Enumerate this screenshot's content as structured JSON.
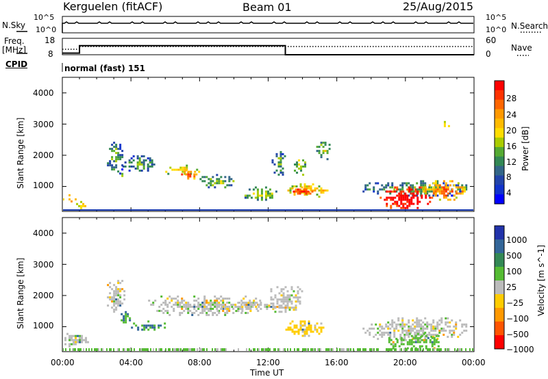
{
  "header": {
    "radar": "Kerguelen (fitACF)",
    "beam": "Beam 01",
    "date": "25/Aug/2015"
  },
  "sky_panel": {
    "left_label": "N.Sky",
    "left_ticks": [
      "10^5",
      "10^0"
    ],
    "right_ticks": [
      "10^5",
      "10^0"
    ],
    "right_label": "N.Search"
  },
  "freq_panel": {
    "left_label_line1": "Freq.",
    "left_label_line2": "[MHz]",
    "left_ticks": [
      "18",
      "8"
    ],
    "right_ticks": [
      "60",
      "0"
    ],
    "right_label": "Nave",
    "cpid_label": "CPID",
    "mode_text": "normal (fast) 151"
  },
  "power_panel": {
    "ylabel": "Slant Range [km]",
    "yticks": [
      "4000",
      "3000",
      "2000",
      "1000"
    ],
    "colorbar_label": "Power [dB]",
    "colorbar_ticks": [
      "28",
      "24",
      "20",
      "16",
      "12",
      "8",
      "4"
    ],
    "colorbar_colors": [
      "#ff0000",
      "#ff3300",
      "#ff6600",
      "#ff9900",
      "#ffbb00",
      "#ffdd00",
      "#aacc00",
      "#55aa33",
      "#338855",
      "#336688",
      "#2244aa",
      "#1133cc",
      "#0000ff"
    ]
  },
  "velocity_panel": {
    "ylabel": "Slant Range [km]",
    "yticks": [
      "4000",
      "3000",
      "2000",
      "1000"
    ],
    "colorbar_label": "Velocity [m s^-1]",
    "colorbar_ticks": [
      "1000",
      "500",
      "100",
      "25",
      "−25",
      "−100",
      "−500",
      "−1000"
    ],
    "colorbar_colors": [
      "#2233aa",
      "#336699",
      "#338855",
      "#55bb33",
      "#bbbbbb",
      "#ffcc00",
      "#ff9900",
      "#ff5500",
      "#ff0000"
    ]
  },
  "xaxis": {
    "ticks": [
      "00:00",
      "04:00",
      "08:00",
      "12:00",
      "16:00",
      "20:00",
      "00:00"
    ],
    "label": "Time UT"
  },
  "chart_data": {
    "type": "heatmap",
    "title": "Kerguelen (fitACF) Beam 01 25/Aug/2015",
    "x_unit": "hours UT",
    "xlim": [
      0,
      24
    ],
    "ylim": [
      200,
      4500
    ],
    "frequency_mhz": [
      [
        0,
        9
      ],
      [
        1,
        13.5
      ],
      [
        13,
        8
      ]
    ],
    "nave": [
      [
        0,
        30
      ],
      [
        24,
        30
      ]
    ],
    "power_regions_db": [
      {
        "t0": 0.0,
        "t1": 0.8,
        "r0": 500,
        "r1": 750,
        "db": 20
      },
      {
        "t0": 0.8,
        "t1": 1.4,
        "r0": 300,
        "r1": 600,
        "db": 16
      },
      {
        "t0": 2.6,
        "t1": 3.5,
        "r0": 1400,
        "r1": 2500,
        "db": 8
      },
      {
        "t0": 3.2,
        "t1": 3.6,
        "r0": 1200,
        "r1": 1500,
        "db": 12
      },
      {
        "t0": 3.5,
        "t1": 5.5,
        "r0": 1500,
        "r1": 2000,
        "db": 8
      },
      {
        "t0": 6.0,
        "t1": 8.0,
        "r0": 1400,
        "r1": 1700,
        "db": 16
      },
      {
        "t0": 6.8,
        "t1": 7.8,
        "r0": 1250,
        "r1": 1550,
        "db": 22
      },
      {
        "t0": 8.0,
        "t1": 10.0,
        "r0": 1000,
        "r1": 1400,
        "db": 10
      },
      {
        "t0": 10.5,
        "t1": 12.5,
        "r0": 600,
        "r1": 1000,
        "db": 12
      },
      {
        "t0": 12.2,
        "t1": 13.0,
        "r0": 1400,
        "r1": 2200,
        "db": 8
      },
      {
        "t0": 13.0,
        "t1": 15.5,
        "r0": 700,
        "r1": 1100,
        "db": 16
      },
      {
        "t0": 13.2,
        "t1": 14.6,
        "r0": 750,
        "r1": 1000,
        "db": 24
      },
      {
        "t0": 13.5,
        "t1": 14.2,
        "r0": 1400,
        "r1": 2000,
        "db": 12
      },
      {
        "t0": 14.8,
        "t1": 15.6,
        "r0": 1900,
        "r1": 2500,
        "db": 12
      },
      {
        "t0": 17.5,
        "t1": 23.5,
        "r0": 700,
        "r1": 1200,
        "db": 8
      },
      {
        "t0": 18.5,
        "t1": 21.5,
        "r0": 300,
        "r1": 1000,
        "db": 28
      },
      {
        "t0": 21.0,
        "t1": 23.5,
        "r0": 600,
        "r1": 1200,
        "db": 20
      },
      {
        "t0": 22.0,
        "t1": 22.7,
        "r0": 2900,
        "r1": 3100,
        "db": 16
      }
    ],
    "velocity_regions_ms": [
      {
        "t0": 0.0,
        "t1": 1.5,
        "r0": 400,
        "r1": 800,
        "v": 0
      },
      {
        "t0": 2.6,
        "t1": 3.6,
        "r0": 1500,
        "r1": 2500,
        "v": 0
      },
      {
        "t0": 3.4,
        "t1": 3.9,
        "r0": 1100,
        "r1": 1500,
        "v": 100
      },
      {
        "t0": 4.0,
        "t1": 6.0,
        "r0": 900,
        "r1": 1200,
        "v": 100
      },
      {
        "t0": 5.0,
        "t1": 11.5,
        "r0": 1400,
        "r1": 2000,
        "v": 0
      },
      {
        "t0": 9.0,
        "t1": 12.5,
        "r0": 1500,
        "r1": 1800,
        "v": 0
      },
      {
        "t0": 12.0,
        "t1": 14.0,
        "r0": 1500,
        "r1": 2300,
        "v": 0
      },
      {
        "t0": 13.0,
        "t1": 15.2,
        "r0": 700,
        "r1": 1200,
        "v": -50
      },
      {
        "t0": 17.5,
        "t1": 23.5,
        "r0": 600,
        "r1": 1300,
        "v": 0
      },
      {
        "t0": 19.0,
        "t1": 22.0,
        "r0": 300,
        "r1": 800,
        "v": 50
      }
    ]
  }
}
